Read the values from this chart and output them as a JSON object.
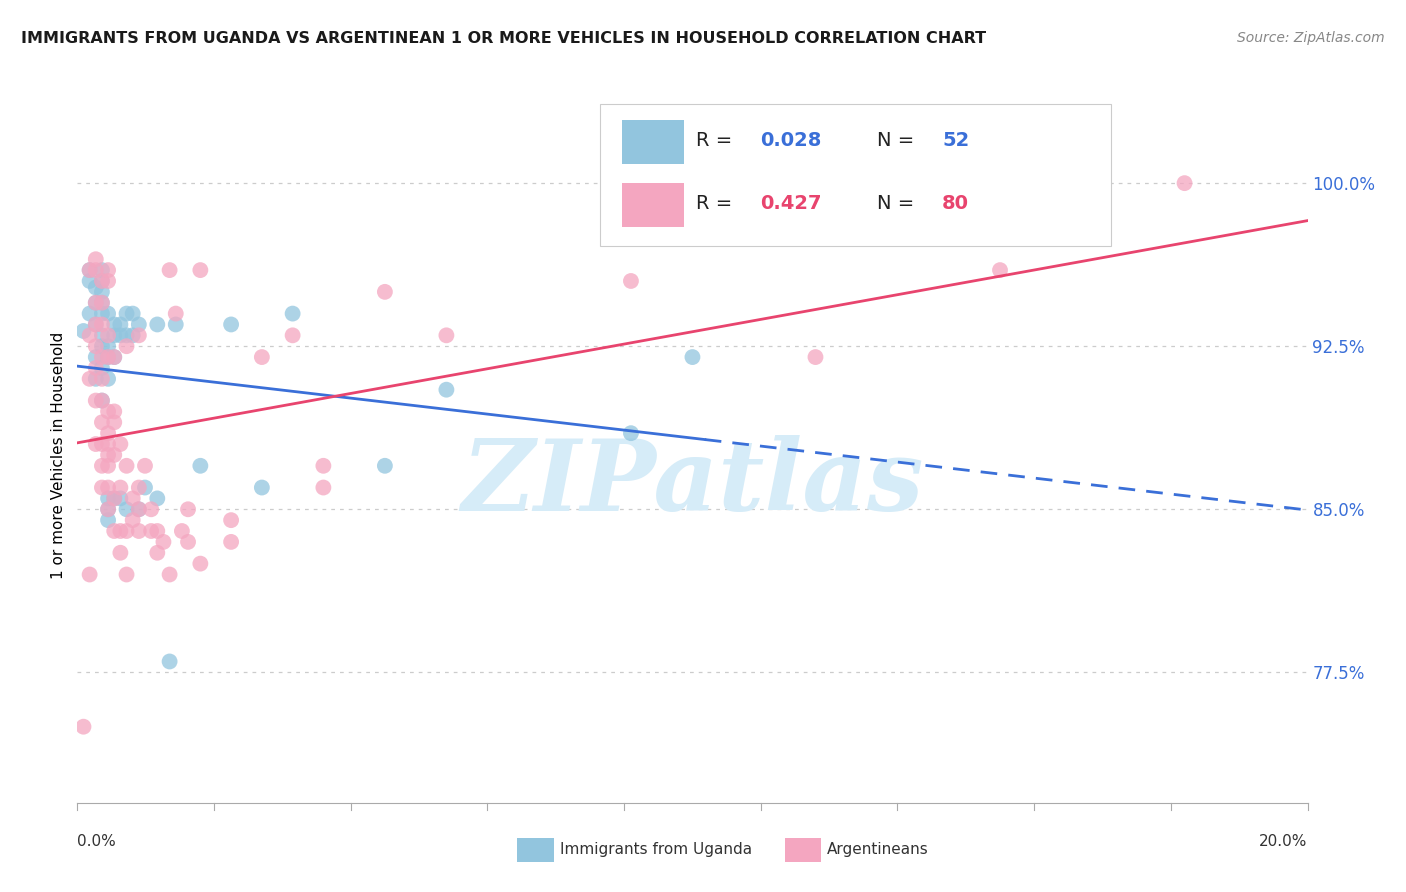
{
  "title": "IMMIGRANTS FROM UGANDA VS ARGENTINEAN 1 OR MORE VEHICLES IN HOUSEHOLD CORRELATION CHART",
  "source": "Source: ZipAtlas.com",
  "ylabel": "1 or more Vehicles in Household",
  "ytick_labels": [
    "77.5%",
    "85.0%",
    "92.5%",
    "100.0%"
  ],
  "ytick_values": [
    0.775,
    0.85,
    0.925,
    1.0
  ],
  "xlim": [
    0.0,
    0.2
  ],
  "ylim": [
    0.715,
    1.035
  ],
  "color_uganda": "#92c5de",
  "color_arg": "#f4a6c0",
  "trend_color_uganda": "#3a6fd8",
  "trend_color_arg": "#e8446e",
  "watermark_color": "#d6ecf8",
  "uganda_scatter": [
    [
      0.001,
      0.932
    ],
    [
      0.002,
      0.94
    ],
    [
      0.002,
      0.96
    ],
    [
      0.002,
      0.955
    ],
    [
      0.003,
      0.952
    ],
    [
      0.003,
      0.945
    ],
    [
      0.003,
      0.935
    ],
    [
      0.003,
      0.92
    ],
    [
      0.003,
      0.91
    ],
    [
      0.004,
      0.96
    ],
    [
      0.004,
      0.955
    ],
    [
      0.004,
      0.95
    ],
    [
      0.004,
      0.945
    ],
    [
      0.004,
      0.94
    ],
    [
      0.004,
      0.93
    ],
    [
      0.004,
      0.925
    ],
    [
      0.004,
      0.915
    ],
    [
      0.004,
      0.9
    ],
    [
      0.005,
      0.94
    ],
    [
      0.005,
      0.925
    ],
    [
      0.005,
      0.92
    ],
    [
      0.005,
      0.91
    ],
    [
      0.005,
      0.855
    ],
    [
      0.005,
      0.85
    ],
    [
      0.005,
      0.845
    ],
    [
      0.006,
      0.935
    ],
    [
      0.006,
      0.93
    ],
    [
      0.006,
      0.92
    ],
    [
      0.006,
      0.855
    ],
    [
      0.007,
      0.935
    ],
    [
      0.007,
      0.93
    ],
    [
      0.007,
      0.855
    ],
    [
      0.008,
      0.94
    ],
    [
      0.008,
      0.93
    ],
    [
      0.008,
      0.85
    ],
    [
      0.009,
      0.94
    ],
    [
      0.009,
      0.93
    ],
    [
      0.01,
      0.935
    ],
    [
      0.01,
      0.85
    ],
    [
      0.011,
      0.86
    ],
    [
      0.013,
      0.935
    ],
    [
      0.013,
      0.855
    ],
    [
      0.015,
      0.78
    ],
    [
      0.016,
      0.935
    ],
    [
      0.02,
      0.87
    ],
    [
      0.025,
      0.935
    ],
    [
      0.03,
      0.86
    ],
    [
      0.035,
      0.94
    ],
    [
      0.05,
      0.87
    ],
    [
      0.06,
      0.905
    ],
    [
      0.09,
      0.885
    ],
    [
      0.1,
      0.92
    ]
  ],
  "arg_scatter": [
    [
      0.001,
      0.75
    ],
    [
      0.002,
      0.82
    ],
    [
      0.002,
      0.91
    ],
    [
      0.002,
      0.93
    ],
    [
      0.002,
      0.96
    ],
    [
      0.003,
      0.88
    ],
    [
      0.003,
      0.9
    ],
    [
      0.003,
      0.915
    ],
    [
      0.003,
      0.925
    ],
    [
      0.003,
      0.935
    ],
    [
      0.003,
      0.945
    ],
    [
      0.003,
      0.96
    ],
    [
      0.003,
      0.965
    ],
    [
      0.004,
      0.86
    ],
    [
      0.004,
      0.87
    ],
    [
      0.004,
      0.88
    ],
    [
      0.004,
      0.89
    ],
    [
      0.004,
      0.9
    ],
    [
      0.004,
      0.91
    ],
    [
      0.004,
      0.92
    ],
    [
      0.004,
      0.935
    ],
    [
      0.004,
      0.945
    ],
    [
      0.004,
      0.955
    ],
    [
      0.005,
      0.85
    ],
    [
      0.005,
      0.86
    ],
    [
      0.005,
      0.87
    ],
    [
      0.005,
      0.875
    ],
    [
      0.005,
      0.88
    ],
    [
      0.005,
      0.885
    ],
    [
      0.005,
      0.895
    ],
    [
      0.005,
      0.92
    ],
    [
      0.005,
      0.93
    ],
    [
      0.005,
      0.955
    ],
    [
      0.005,
      0.96
    ],
    [
      0.006,
      0.84
    ],
    [
      0.006,
      0.855
    ],
    [
      0.006,
      0.875
    ],
    [
      0.006,
      0.89
    ],
    [
      0.006,
      0.895
    ],
    [
      0.006,
      0.92
    ],
    [
      0.007,
      0.83
    ],
    [
      0.007,
      0.84
    ],
    [
      0.007,
      0.86
    ],
    [
      0.007,
      0.88
    ],
    [
      0.008,
      0.82
    ],
    [
      0.008,
      0.84
    ],
    [
      0.008,
      0.87
    ],
    [
      0.008,
      0.925
    ],
    [
      0.009,
      0.845
    ],
    [
      0.009,
      0.855
    ],
    [
      0.01,
      0.84
    ],
    [
      0.01,
      0.85
    ],
    [
      0.01,
      0.86
    ],
    [
      0.01,
      0.93
    ],
    [
      0.011,
      0.87
    ],
    [
      0.012,
      0.84
    ],
    [
      0.012,
      0.85
    ],
    [
      0.013,
      0.83
    ],
    [
      0.013,
      0.84
    ],
    [
      0.014,
      0.835
    ],
    [
      0.015,
      0.82
    ],
    [
      0.015,
      0.96
    ],
    [
      0.016,
      0.94
    ],
    [
      0.017,
      0.84
    ],
    [
      0.018,
      0.835
    ],
    [
      0.018,
      0.85
    ],
    [
      0.02,
      0.825
    ],
    [
      0.02,
      0.96
    ],
    [
      0.025,
      0.835
    ],
    [
      0.025,
      0.845
    ],
    [
      0.03,
      0.92
    ],
    [
      0.035,
      0.93
    ],
    [
      0.04,
      0.86
    ],
    [
      0.04,
      0.87
    ],
    [
      0.05,
      0.95
    ],
    [
      0.06,
      0.93
    ],
    [
      0.09,
      0.955
    ],
    [
      0.12,
      0.92
    ],
    [
      0.15,
      0.96
    ],
    [
      0.18,
      1.0
    ]
  ],
  "legend_r_uganda": "0.028",
  "legend_n_uganda": "52",
  "legend_r_arg": "0.427",
  "legend_n_arg": "80",
  "xtick_positions": [
    0.0,
    0.022222,
    0.044444,
    0.066667,
    0.088889,
    0.111111,
    0.133333,
    0.155556,
    0.177778,
    0.2
  ]
}
